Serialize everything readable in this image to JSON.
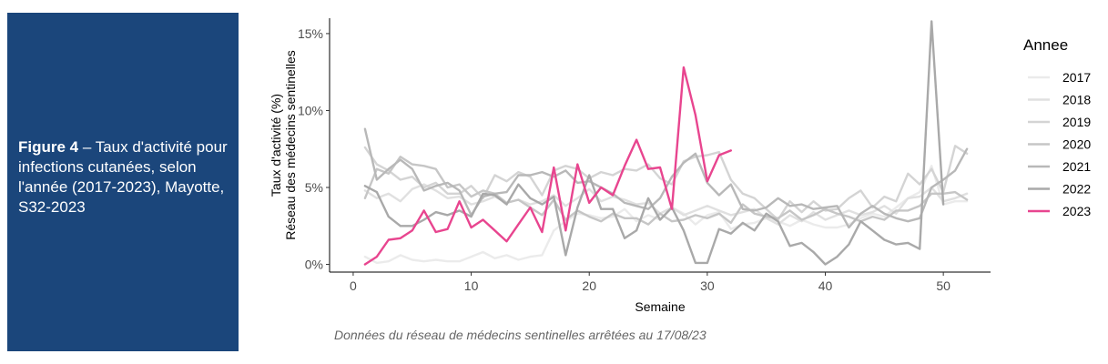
{
  "caption": {
    "figure_label": "Figure 4",
    "separator": " – ",
    "text": "Taux d'activité pour infections cutanées, selon l'année (2017-2023), Mayotte, S32-2023"
  },
  "footnote": "Données du réseau de médecins sentinelles arrêtées au  17/08/23",
  "chart_data": {
    "type": "line",
    "xlabel": "Semaine",
    "ylabel_lines": [
      "Taux d'activité (%)",
      "Réseau des médecins sentinelles"
    ],
    "xlim": [
      -2,
      54
    ],
    "ylim": [
      -0.5,
      16
    ],
    "x_ticks": [
      0,
      10,
      20,
      30,
      40,
      50
    ],
    "y_ticks": [
      0,
      5,
      10,
      15
    ],
    "y_tick_labels": [
      "0%",
      "5%",
      "10%",
      "15%"
    ],
    "grid": false,
    "legend": {
      "title": "Annee",
      "position": "right"
    },
    "series": [
      {
        "name": "2017",
        "color": "#ebebeb",
        "values": [
          0.5,
          0.1,
          0.2,
          0.6,
          0.3,
          0.2,
          0.3,
          0.2,
          0.2,
          0.5,
          0.8,
          0.4,
          0.6,
          0.3,
          0.5,
          0.6,
          2.2,
          2.8,
          3.3,
          3.2,
          3.0,
          3.1,
          3.6,
          2.8,
          3.2,
          2.9,
          3.7,
          3.3,
          2.6,
          3.2,
          3.4,
          2.3,
          2.6,
          2.7,
          3.0,
          2.8,
          2.5,
          2.9,
          2.6,
          2.4,
          2.4,
          2.6,
          3.0,
          3.3,
          3.1,
          3.7,
          4.3,
          4.7,
          6.4,
          3.9,
          4.1,
          4.1
        ]
      },
      {
        "name": "2018",
        "color": "#e0e0e0",
        "values": [
          4.8,
          4.3,
          4.6,
          4.1,
          4.9,
          5.2,
          4.8,
          4.3,
          4.4,
          3.9,
          4.1,
          4.4,
          4.0,
          4.2,
          3.9,
          4.1,
          4.5,
          3.8,
          4.3,
          4.9,
          4.1,
          4.4,
          4.2,
          3.9,
          4.0,
          3.3,
          3.7,
          3.2,
          3.5,
          3.8,
          3.5,
          3.2,
          3.4,
          3.6,
          3.0,
          2.6,
          3.2,
          2.8,
          3.4,
          2.9,
          3.2,
          3.5,
          3.2,
          3.4,
          3.8,
          3.3,
          4.3,
          4.4,
          5.0,
          4.1,
          4.3,
          4.6
        ]
      },
      {
        "name": "2019",
        "color": "#d4d4d4",
        "values": [
          7.6,
          6.5,
          6.1,
          5.5,
          5.7,
          5.0,
          5.3,
          4.6,
          4.6,
          5.1,
          4.3,
          5.8,
          5.4,
          6.0,
          5.7,
          4.5,
          6.1,
          6.4,
          6.2,
          5.6,
          6.0,
          5.8,
          6.2,
          6.1,
          6.5,
          5.6,
          5.2,
          6.7,
          7.0,
          7.1,
          7.3,
          5.5,
          4.6,
          4.3,
          3.6,
          2.9,
          4.1,
          3.4,
          4.1,
          3.5,
          3.6,
          4.3,
          4.8,
          3.7,
          4.4,
          4.1,
          5.9,
          5.2,
          6.2,
          4.7,
          7.7,
          7.2
        ]
      },
      {
        "name": "2020",
        "color": "#c6c6c6",
        "values": [
          4.3,
          6.2,
          5.9,
          7.0,
          6.5,
          6.4,
          6.2,
          5.0,
          5.2,
          4.4,
          4.8,
          4.6,
          4.0,
          4.2,
          3.7,
          3.2,
          4.2,
          2.9,
          3.5,
          3.1,
          2.8,
          3.3,
          3.0,
          3.0,
          2.6,
          3.3,
          2.8,
          2.9,
          3.2,
          3.0,
          3.3,
          2.7,
          3.9,
          3.3,
          3.1,
          3.0,
          3.5,
          2.9,
          3.2,
          3.6,
          3.3,
          3.1,
          2.8,
          3.1,
          2.9,
          3.5,
          3.5,
          3.8,
          4.6,
          4.6,
          4.7,
          4.2
        ]
      },
      {
        "name": "2021",
        "color": "#b8b8b8",
        "values": [
          8.8,
          5.5,
          6.2,
          6.8,
          6.2,
          4.8,
          5.1,
          5.3,
          4.8,
          3.2,
          4.4,
          4.6,
          4.7,
          5.8,
          5.8,
          6.0,
          5.7,
          6.1,
          5.3,
          5.4,
          5.0,
          4.6,
          4.0,
          3.8,
          3.6,
          4.3,
          5.7,
          6.6,
          7.2,
          5.3,
          4.5,
          5.2,
          3.6,
          3.5,
          3.7,
          4.3,
          3.8,
          3.9,
          3.6,
          3.7,
          3.8,
          2.4,
          3.3,
          3.8,
          3.3,
          3.0,
          2.8,
          3.0,
          5.0,
          5.5,
          6.1,
          7.5
        ]
      },
      {
        "name": "2022",
        "color": "#a9a9a9",
        "values": [
          5.1,
          4.7,
          3.1,
          2.5,
          2.5,
          2.9,
          3.4,
          3.2,
          3.5,
          3.1,
          4.6,
          4.5,
          3.9,
          5.2,
          4.3,
          3.9,
          4.4,
          0.6,
          3.7,
          5.8,
          3.6,
          3.6,
          1.7,
          2.2,
          4.3,
          2.9,
          3.7,
          2.2,
          0.1,
          0.1,
          2.3,
          2.0,
          2.7,
          2.2,
          3.3,
          2.8,
          1.2,
          1.4,
          0.8,
          0.0,
          0.5,
          1.3,
          2.8,
          2.2,
          1.6,
          1.3,
          1.4,
          1.0,
          15.8,
          3.9,
          null,
          null
        ]
      },
      {
        "name": "2023",
        "color": "#e8458f",
        "values": [
          0.0,
          0.5,
          1.6,
          1.7,
          2.2,
          3.5,
          2.1,
          2.3,
          4.1,
          2.4,
          2.9,
          2.2,
          1.5,
          2.6,
          3.7,
          2.1,
          6.3,
          2.2,
          6.5,
          4.0,
          5.0,
          4.5,
          6.4,
          8.1,
          6.2,
          6.3,
          3.6,
          12.8,
          9.7,
          5.4,
          7.1,
          7.4,
          null,
          null,
          null,
          null,
          null,
          null,
          null,
          null,
          null,
          null,
          null,
          null,
          null,
          null,
          null,
          null,
          null,
          null,
          null,
          null
        ]
      }
    ]
  }
}
